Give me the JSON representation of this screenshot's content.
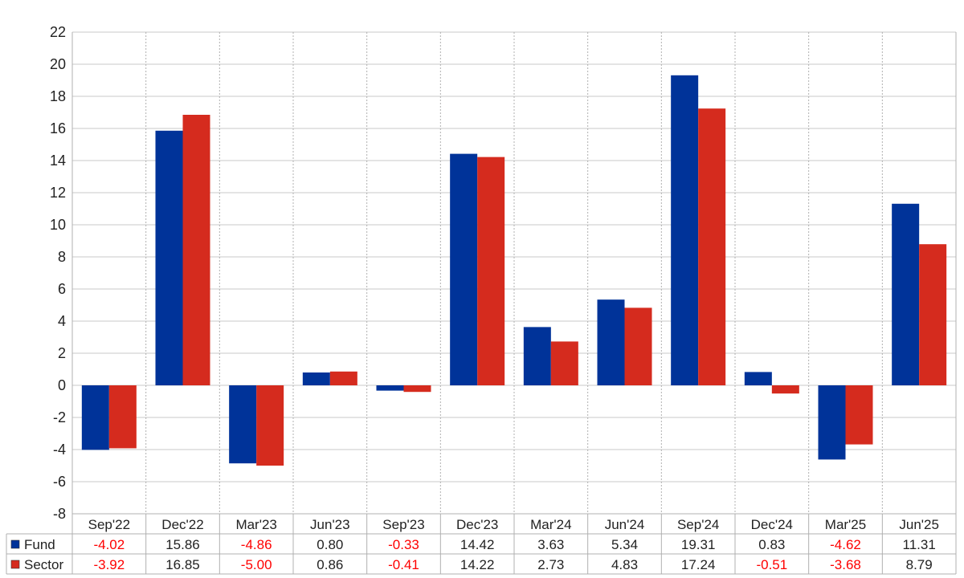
{
  "chart_data": {
    "type": "bar",
    "title": "",
    "xlabel": "",
    "ylabel": "",
    "categories": [
      "Sep'22",
      "Dec'22",
      "Mar'23",
      "Jun'23",
      "Sep'23",
      "Dec'23",
      "Mar'24",
      "Jun'24",
      "Sep'24",
      "Dec'24",
      "Mar'25",
      "Jun'25"
    ],
    "series": [
      {
        "name": "Fund",
        "color": "#003399",
        "values": [
          -4.02,
          15.86,
          -4.86,
          0.8,
          -0.33,
          14.42,
          3.63,
          5.34,
          19.31,
          0.83,
          -4.62,
          11.31
        ],
        "labels": [
          "-4.02",
          "15.86",
          "-4.86",
          "0.80",
          "-0.33",
          "14.42",
          "3.63",
          "5.34",
          "19.31",
          "0.83",
          "-4.62",
          "11.31"
        ]
      },
      {
        "name": "Sector",
        "color": "#d52b1e",
        "values": [
          -3.92,
          16.85,
          -5.0,
          0.86,
          -0.41,
          14.22,
          2.73,
          4.83,
          17.24,
          -0.51,
          -3.68,
          8.79
        ],
        "labels": [
          "-3.92",
          "16.85",
          "-5.00",
          "0.86",
          "-0.41",
          "14.22",
          "2.73",
          "4.83",
          "17.24",
          "-0.51",
          "-3.68",
          "8.79"
        ]
      }
    ],
    "ylim": [
      -8,
      22
    ],
    "yticks": [
      -8,
      -6,
      -4,
      -2,
      0,
      2,
      4,
      6,
      8,
      10,
      12,
      14,
      16,
      18,
      20,
      22
    ],
    "grid": true,
    "legend": "table-below",
    "negative_label_color": "#ff0000"
  }
}
